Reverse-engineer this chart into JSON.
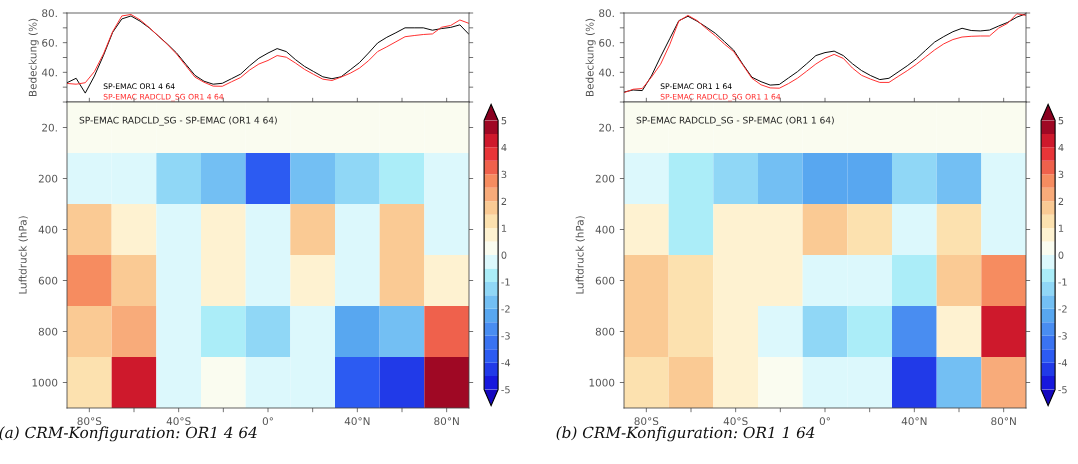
{
  "chart_data": [
    {
      "type": "line",
      "ylabel": "Bedeckung (%)",
      "categories": [
        null,
        null,
        null,
        null,
        null,
        null,
        null,
        null,
        null,
        null,
        null,
        null,
        null,
        null,
        null,
        null,
        null,
        null,
        null,
        null,
        null,
        null,
        null,
        null,
        null,
        null,
        null,
        null,
        null,
        null,
        null,
        null,
        null,
        null,
        null,
        null,
        null,
        null,
        null,
        null,
        null,
        null,
        null,
        null,
        null
      ],
      "ylim": [
        20,
        80
      ],
      "yticks": [
        {
          "value": 20,
          "label": null
        },
        {
          "value": 30,
          "label": null
        },
        {
          "value": 40,
          "label": "40."
        },
        {
          "value": 50,
          "label": null
        },
        {
          "value": 60,
          "label": "60."
        },
        {
          "value": 70,
          "label": null
        },
        {
          "value": 80,
          "label": "80."
        }
      ],
      "tick_labels": "y",
      "series": [
        {
          "name": "SP-EMAC OR1 4 64",
          "color": "#000000",
          "values": [
            33,
            36,
            26,
            37.5,
            51.5,
            67,
            76,
            78,
            74.5,
            70,
            64.5,
            59,
            53,
            45.5,
            38,
            34,
            32,
            32.6,
            35.7,
            38.8,
            44.5,
            49.5,
            53,
            56,
            54,
            48.6,
            44,
            40.5,
            37,
            35.7,
            37,
            41.7,
            46.5,
            53,
            59.8,
            63.6,
            66.7,
            70,
            70,
            70,
            68.4,
            69.5,
            70.3,
            72,
            65.6
          ]
        },
        {
          "name": "SP-EMAC RADCLD_SG OR1 4 64",
          "color": "#ff2a2a",
          "values": [
            32.5,
            32,
            33,
            40.5,
            52.5,
            67.5,
            78,
            79,
            75.4,
            70.2,
            64.5,
            58.7,
            52.3,
            44.5,
            36.8,
            33.3,
            30.7,
            30.6,
            33.6,
            36.5,
            41.6,
            45.6,
            48,
            51.3,
            50.2,
            46.3,
            42,
            38.6,
            35.4,
            34.5,
            36.8,
            39.4,
            42.8,
            47.8,
            54,
            57.2,
            60.6,
            64,
            64.8,
            65.5,
            65.9,
            70.4,
            71.6,
            75.3,
            73
          ]
        }
      ]
    },
    {
      "type": "heatmap",
      "title": "SP-EMAC RADCLD_SG - SP-EMAC (OR1 4 64)",
      "ylabel": "Luftdruck (hPa)",
      "categories": [
        "80°S",
        null,
        "40°S",
        null,
        "0°",
        null,
        "40°N",
        null,
        "80°N"
      ],
      "y_categories": [
        "20.",
        "200",
        "400",
        "600",
        "800",
        "1000"
      ],
      "clim": [
        -5,
        5
      ],
      "cticks": [
        -5,
        -4,
        -3,
        -2,
        -1,
        0,
        1,
        2,
        3,
        4,
        5
      ],
      "annotations": [
        "(a) CRM-Konfiguration: OR1 4 64"
      ],
      "cells": [
        [
          0.1,
          0.2,
          0.2,
          0.3,
          0,
          0.3,
          0.2,
          0.3,
          0
        ],
        [
          -0.3,
          -0.5,
          -1.2,
          -2,
          -4,
          -2,
          -1.5,
          -1,
          -0.3
        ],
        [
          1.5,
          0.5,
          -0.3,
          0.5,
          -0.5,
          1.5,
          -0.5,
          1.5,
          -0.5
        ],
        [
          2.5,
          1.5,
          -0.3,
          0.5,
          -0.5,
          0.5,
          -0.5,
          1.5,
          0.5
        ],
        [
          1.5,
          2,
          -0.5,
          -0.8,
          -1.5,
          -0.5,
          -2.5,
          -2,
          3
        ],
        [
          1,
          4,
          -0.5,
          0.2,
          -0.5,
          -0.3,
          -4,
          -4.5,
          4.5
        ]
      ]
    },
    {
      "type": "line",
      "ylabel": "Bedeckung (%)",
      "categories": [
        null,
        null,
        null,
        null,
        null,
        null,
        null,
        null,
        null,
        null,
        null,
        null,
        null,
        null,
        null,
        null,
        null,
        null,
        null,
        null,
        null,
        null,
        null,
        null,
        null,
        null,
        null,
        null,
        null,
        null,
        null,
        null,
        null,
        null,
        null,
        null,
        null,
        null,
        null,
        null,
        null,
        null,
        null,
        null,
        null
      ],
      "ylim": [
        20,
        80
      ],
      "yticks": [
        {
          "value": 20,
          "label": null
        },
        {
          "value": 30,
          "label": null
        },
        {
          "value": 40,
          "label": "40."
        },
        {
          "value": 50,
          "label": null
        },
        {
          "value": 60,
          "label": "60."
        },
        {
          "value": 70,
          "label": null
        },
        {
          "value": 80,
          "label": "80."
        }
      ],
      "tick_labels": "y",
      "series": [
        {
          "name": "SP-EMAC OR1 1 64",
          "color": "#000000",
          "values": [
            26.7,
            28.1,
            27.7,
            37.6,
            50.4,
            62.6,
            74.8,
            77.8,
            74.5,
            70.5,
            66.3,
            60.7,
            55,
            45.5,
            36.7,
            33.7,
            31.4,
            31.8,
            36.2,
            40.5,
            45.8,
            51.3,
            53.3,
            54.3,
            51.3,
            45.8,
            41.2,
            37.8,
            35.1,
            36,
            40.2,
            44.4,
            49.1,
            54.8,
            60.4,
            64.1,
            67.4,
            69.7,
            68.2,
            67.9,
            68.5,
            71.2,
            73.7,
            77.2,
            79.5
          ]
        },
        {
          "name": "SP-EMAC RADCLD_SG OR1 1 64",
          "color": "#ff2a2a",
          "values": [
            26.3,
            28.6,
            29.1,
            36.7,
            45.4,
            58.6,
            74.5,
            78.4,
            74.9,
            69.6,
            64.6,
            59,
            54,
            45,
            36,
            31.6,
            29.5,
            29.3,
            32.4,
            36.1,
            40.8,
            45.6,
            49.5,
            52.1,
            49.4,
            42.9,
            38,
            35.4,
            33.2,
            33.2,
            37.2,
            41.1,
            45.4,
            50.3,
            55.1,
            59.2,
            62.1,
            63.8,
            64.3,
            64.5,
            64.5,
            69.8,
            73.1,
            79.5,
            78.4
          ]
        }
      ]
    },
    {
      "type": "heatmap",
      "title": "SP-EMAC RADCLD_SG - SP-EMAC (OR1 1 64)",
      "ylabel": "Luftdruck (hPa)",
      "categories": [
        "80°S",
        null,
        "40°S",
        null,
        "0°",
        null,
        "40°N",
        null,
        "80°N"
      ],
      "y_categories": [
        "20.",
        "200",
        "400",
        "600",
        "800",
        "1000"
      ],
      "clim": [
        -5,
        5
      ],
      "cticks": [
        -5,
        -4,
        -3,
        -2,
        -1,
        0,
        1,
        2,
        3,
        4,
        5
      ],
      "annotations": [
        "(b) CRM-Konfiguration: OR1 1 64"
      ],
      "cells": [
        [
          0,
          0.2,
          0,
          0,
          0,
          0,
          0.2,
          0,
          0
        ],
        [
          -0.3,
          -1,
          -1.5,
          -2,
          -2.5,
          -2.5,
          -1.5,
          -2,
          -0.5
        ],
        [
          0.5,
          -1,
          0.5,
          0.8,
          1.5,
          1.2,
          -0.5,
          1,
          -0.5
        ],
        [
          1.5,
          1,
          0.8,
          0.5,
          -0.5,
          -0.5,
          -0.8,
          1.5,
          2.5
        ],
        [
          1.5,
          1,
          0.5,
          -0.5,
          -1.5,
          -1,
          -3,
          0.5,
          4
        ],
        [
          1,
          1.5,
          0.5,
          0.3,
          -0.5,
          -0.3,
          -4.5,
          -2,
          2
        ]
      ]
    }
  ]
}
